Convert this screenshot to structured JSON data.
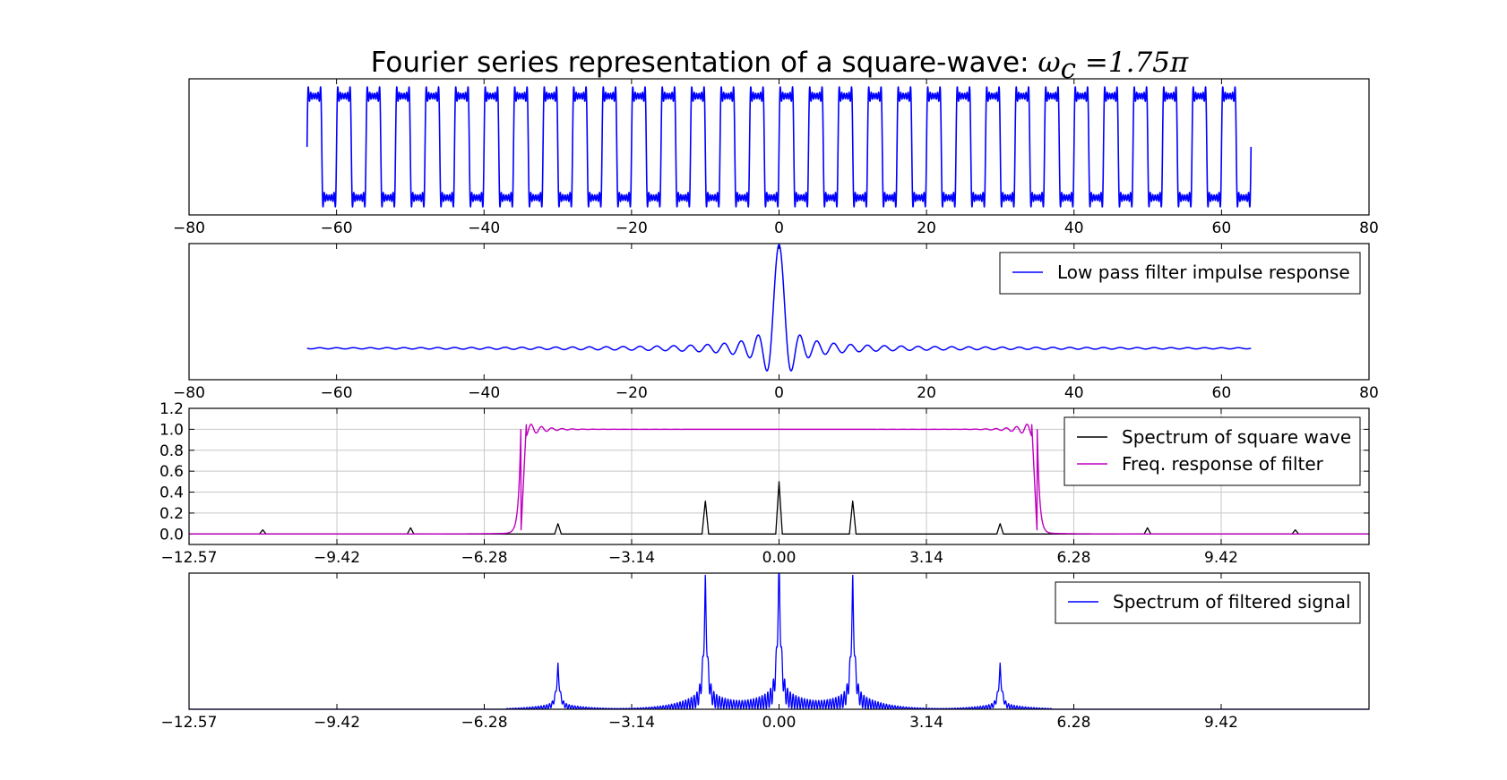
{
  "figure": {
    "title_text": "Fourier series representation of a square-wave: ",
    "title_math": "ω",
    "title_math_sub": "c",
    "title_math_rest": " =1.75π"
  },
  "chart_data": [
    {
      "type": "line",
      "name": "square-wave-reconstruction",
      "title": "",
      "xlabel": "",
      "ylabel": "",
      "xlim": [
        -80,
        80
      ],
      "ylim": [
        -1.3,
        1.3
      ],
      "xticks": [
        -80,
        -60,
        -40,
        -20,
        0,
        20,
        40,
        60,
        80
      ],
      "xtick_labels": [
        "−80",
        "−60",
        "−40",
        "−20",
        "0",
        "20",
        "40",
        "60",
        "80"
      ],
      "yticks": [],
      "grid": false,
      "legend": null,
      "color": "#0000ff",
      "series": [
        {
          "x_range": [
            -64,
            64
          ],
          "period": 4,
          "amplitude": 1,
          "ripple": "gibbs"
        }
      ]
    },
    {
      "type": "line",
      "name": "impulse-response",
      "title": "",
      "xlabel": "",
      "ylabel": "",
      "xlim": [
        -80,
        80
      ],
      "ylim": [
        -0.3,
        1.0
      ],
      "xticks": [
        -80,
        -60,
        -40,
        -20,
        0,
        20,
        40,
        60,
        80
      ],
      "xtick_labels": [
        "−80",
        "−60",
        "−40",
        "−20",
        "0",
        "20",
        "40",
        "60",
        "80"
      ],
      "yticks": [],
      "grid": false,
      "legend": "top-right",
      "color": "#0000ff",
      "series": [
        {
          "name": "Low pass filter impulse response",
          "x_range": [
            -64,
            64
          ],
          "function": "sinc",
          "cutoff": 1.75
        }
      ]
    },
    {
      "type": "line",
      "name": "spectra",
      "title": "",
      "xlabel": "",
      "ylabel": "",
      "xlim": [
        -12.57,
        12.57
      ],
      "ylim": [
        -0.1,
        1.2
      ],
      "xticks": [
        -12.57,
        -9.42,
        -6.28,
        -3.14,
        0.0,
        3.14,
        6.28,
        9.42
      ],
      "xtick_labels": [
        "−12.57",
        "−9.42",
        "−6.28",
        "−3.14",
        "0.00",
        "3.14",
        "6.28",
        "9.42"
      ],
      "yticks": [
        0.0,
        0.2,
        0.4,
        0.6,
        0.8,
        1.0,
        1.2
      ],
      "ytick_labels": [
        "0.0",
        "0.2",
        "0.4",
        "0.6",
        "0.8",
        "1.0",
        "1.2"
      ],
      "grid": true,
      "legend": "top-right",
      "series": [
        {
          "name": "Spectrum of square wave",
          "color": "#000000",
          "peaks": [
            {
              "x": -11.0,
              "y": 0.04
            },
            {
              "x": -7.85,
              "y": 0.06
            },
            {
              "x": -4.71,
              "y": 0.1
            },
            {
              "x": -1.57,
              "y": 0.32
            },
            {
              "x": 0.0,
              "y": 0.5
            },
            {
              "x": 1.57,
              "y": 0.32
            },
            {
              "x": 4.71,
              "y": 0.1
            },
            {
              "x": 7.85,
              "y": 0.06
            },
            {
              "x": 11.0,
              "y": 0.04
            }
          ]
        },
        {
          "name": "Freq. response of filter",
          "color": "#bf00bf",
          "passband": [
            -5.5,
            5.5
          ],
          "level": 1.0,
          "overshoot": 1.09
        }
      ]
    },
    {
      "type": "line",
      "name": "filtered-spectrum",
      "title": "",
      "xlabel": "",
      "ylabel": "",
      "xlim": [
        -12.57,
        12.57
      ],
      "ylim": [
        0,
        1.0
      ],
      "xticks": [
        -12.57,
        -9.42,
        -6.28,
        -3.14,
        0.0,
        3.14,
        6.28,
        9.42
      ],
      "xtick_labels": [
        "−12.57",
        "−9.42",
        "−6.28",
        "−3.14",
        "0.00",
        "3.14",
        "6.28",
        "9.42"
      ],
      "yticks": [],
      "grid": false,
      "legend": "top-right",
      "series": [
        {
          "name": "Spectrum of filtered signal",
          "color": "#0000ff",
          "peaks": [
            {
              "x": -4.71,
              "y": 0.29
            },
            {
              "x": -1.57,
              "y": 0.85
            },
            {
              "x": 0.0,
              "y": 1.0
            },
            {
              "x": 1.57,
              "y": 0.85
            },
            {
              "x": 4.71,
              "y": 0.29
            }
          ]
        }
      ]
    }
  ]
}
